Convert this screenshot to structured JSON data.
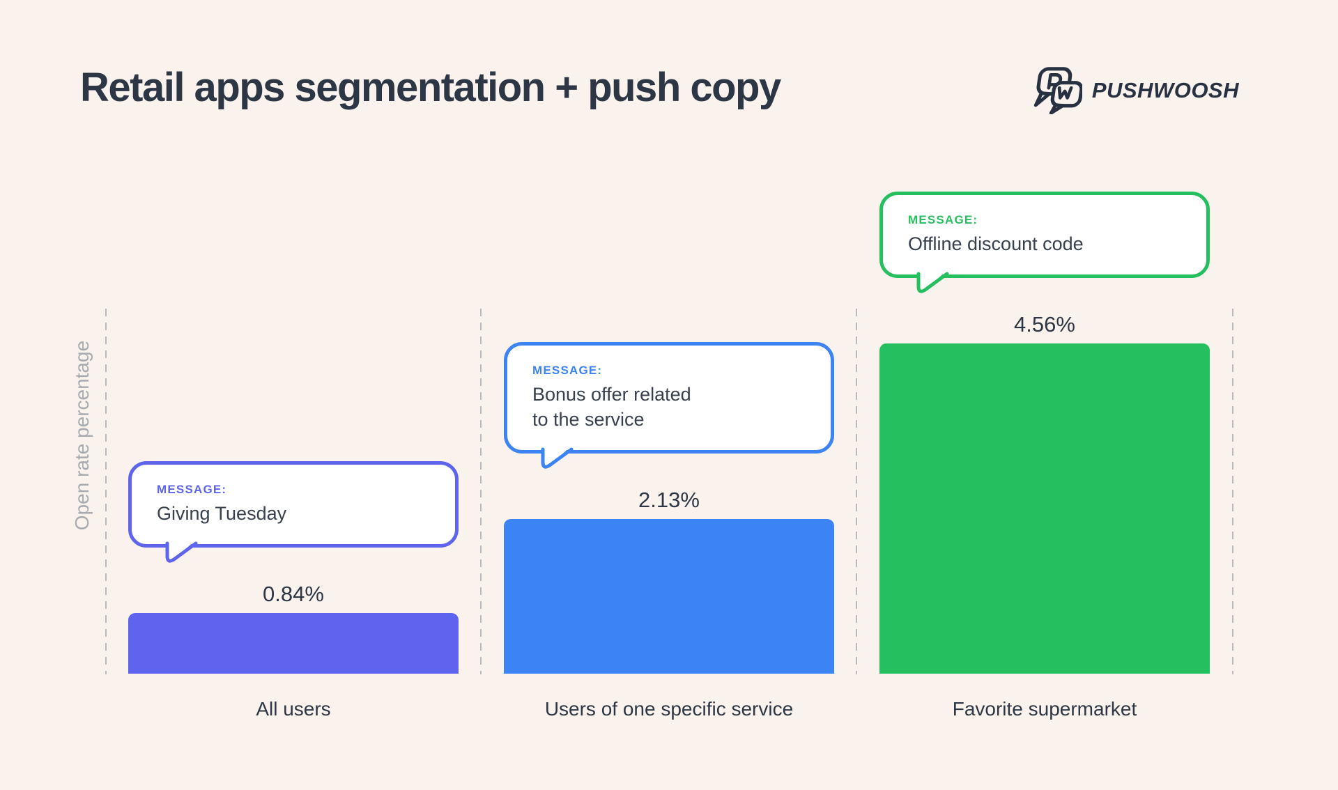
{
  "page": {
    "background_color": "#faf2ec"
  },
  "header": {
    "title": "Retail apps segmentation + push copy",
    "brand_name": "PUSHWOOSH",
    "logo_icon": "pushwoosh-chat-bubbles",
    "text_color": "#2d3645"
  },
  "chart_data": {
    "type": "bar",
    "title": "Retail apps segmentation + push copy",
    "ylabel": "Open rate percentage",
    "xlabel": "",
    "ylim": [
      0,
      5
    ],
    "grid": "dashed-vertical-separators",
    "separator_color": "#b6b9bf",
    "axis_label_color": "#a6aab1",
    "categories": [
      "All users",
      "Users of one specific service",
      "Favorite supermarket"
    ],
    "values": [
      0.84,
      2.13,
      4.56
    ],
    "segments": [
      {
        "category": "All users",
        "value": 0.84,
        "value_label": "0.84%",
        "message_tag": "MESSAGE:",
        "message": "Giving Tuesday",
        "color": "#5f64ee"
      },
      {
        "category": "Users of one specific service",
        "value": 2.13,
        "value_label": "2.13%",
        "message_tag": "MESSAGE:",
        "message": "Bonus offer related\nto the service",
        "color": "#3c83f6"
      },
      {
        "category": "Favorite supermarket",
        "value": 4.56,
        "value_label": "4.56%",
        "message_tag": "MESSAGE:",
        "message": "Offline discount code",
        "color": "#26bf5f"
      }
    ]
  }
}
